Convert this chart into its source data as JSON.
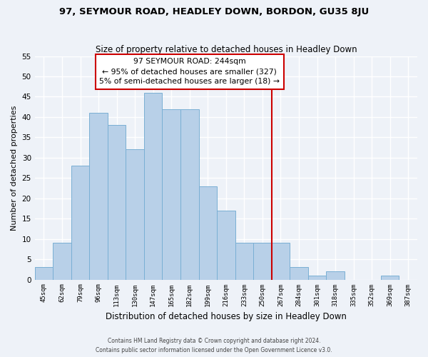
{
  "title": "97, SEYMOUR ROAD, HEADLEY DOWN, BORDON, GU35 8JU",
  "subtitle": "Size of property relative to detached houses in Headley Down",
  "xlabel": "Distribution of detached houses by size in Headley Down",
  "ylabel": "Number of detached properties",
  "bar_labels": [
    "45sqm",
    "62sqm",
    "79sqm",
    "96sqm",
    "113sqm",
    "130sqm",
    "147sqm",
    "165sqm",
    "182sqm",
    "199sqm",
    "216sqm",
    "233sqm",
    "250sqm",
    "267sqm",
    "284sqm",
    "301sqm",
    "318sqm",
    "335sqm",
    "352sqm",
    "369sqm",
    "387sqm"
  ],
  "bar_values": [
    3,
    9,
    28,
    41,
    38,
    32,
    46,
    42,
    42,
    23,
    17,
    9,
    9,
    9,
    3,
    1,
    2,
    0,
    0,
    1,
    0
  ],
  "bar_color": "#b8d0e8",
  "bar_edge_color": "#7aafd4",
  "ylim": [
    0,
    55
  ],
  "yticks": [
    0,
    5,
    10,
    15,
    20,
    25,
    30,
    35,
    40,
    45,
    50,
    55
  ],
  "vline_x_index": 12.5,
  "vline_color": "#cc0000",
  "annotation_title": "97 SEYMOUR ROAD: 244sqm",
  "annotation_line1": "← 95% of detached houses are smaller (327)",
  "annotation_line2": "5% of semi-detached houses are larger (18) →",
  "annotation_box_color": "#ffffff",
  "annotation_box_edge": "#cc0000",
  "footer1": "Contains HM Land Registry data © Crown copyright and database right 2024.",
  "footer2": "Contains public sector information licensed under the Open Government Licence v3.0.",
  "background_color": "#eef2f8",
  "grid_color": "#ffffff"
}
